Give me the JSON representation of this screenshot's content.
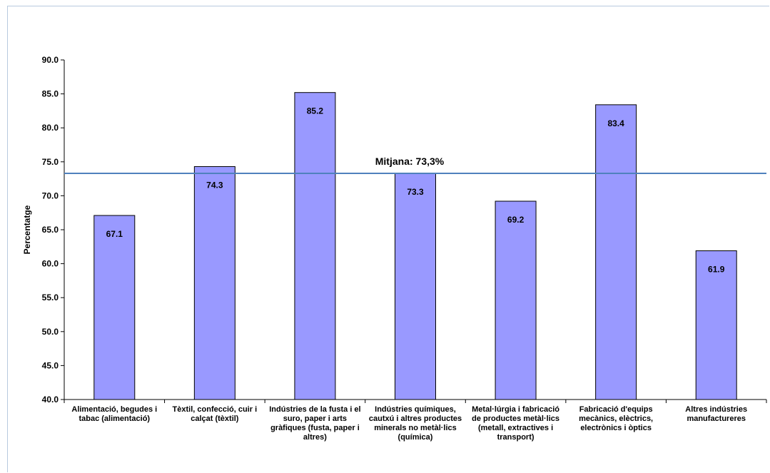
{
  "chart_data": {
    "type": "bar",
    "categories": [
      [
        "Alimentació, begudes i",
        "tabac (alimentació)"
      ],
      [
        "Tèxtil, confecció, cuir i",
        "calçat (tèxtil)"
      ],
      [
        "Indústries de la fusta i el",
        "suro, paper i arts",
        "gràfiques (fusta, paper i",
        "altres)"
      ],
      [
        "Indústries químiques,",
        "cautxú i altres productes",
        "minerals no metàl·lics",
        "(química)"
      ],
      [
        "Metal·lúrgia i fabricació",
        "de productes metàl·lics",
        "(metall, extractives i",
        "transport)"
      ],
      [
        "Fabricació d'equips",
        "mecànics, elèctrics,",
        "electrònics i òptics"
      ],
      [
        "Altres indústries",
        "manufactureres"
      ]
    ],
    "values": [
      67.1,
      74.3,
      85.2,
      73.3,
      69.2,
      83.4,
      61.9
    ],
    "data_labels": [
      "67.1",
      "74.3",
      "85.2",
      "73.3",
      "69.2",
      "83.4",
      "61.9"
    ],
    "ylabel": "Percentatge",
    "xlabel": "",
    "ylim": [
      40.0,
      90.0
    ],
    "yticks": [
      40.0,
      45.0,
      50.0,
      55.0,
      60.0,
      65.0,
      70.0,
      75.0,
      80.0,
      85.0,
      90.0
    ],
    "ytick_labels": [
      "40.0",
      "45.0",
      "50.0",
      "55.0",
      "60.0",
      "65.0",
      "70.0",
      "75.0",
      "80.0",
      "85.0",
      "90.0"
    ],
    "average": {
      "value": 73.3,
      "label": "Mitjana: 73,3%"
    },
    "grid": false,
    "colors": {
      "bar_fill": "#9999ff",
      "bar_stroke": "#000000",
      "average_line": "#4f81bd",
      "frame": "#b7c9de"
    }
  }
}
